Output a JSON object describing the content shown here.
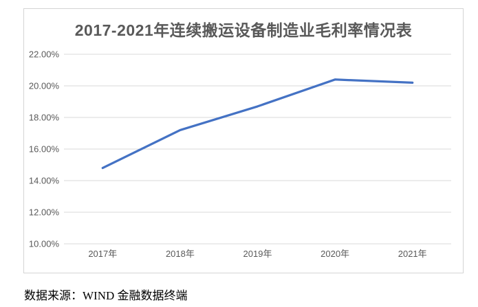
{
  "chart": {
    "title": "2017-2021年连续搬运设备制造业毛利率情况表",
    "title_color": "#595959",
    "border_color": "#d4d4d4",
    "line_color": "#4472C4",
    "gridline_color": "#d9d9d9",
    "tick_color": "#595959"
  },
  "chart_data": {
    "type": "line",
    "title": "2017-2021年连续搬运设备制造业毛利率情况表",
    "categories": [
      "2017年",
      "2018年",
      "2019年",
      "2020年",
      "2021年"
    ],
    "series": [
      {
        "name": "毛利率",
        "values": [
          14.8,
          17.2,
          18.7,
          20.4,
          20.2
        ]
      }
    ],
    "xlabel": "",
    "ylabel": "",
    "ylim": [
      10,
      22
    ],
    "ytick_step": 2,
    "ytick_labels": [
      "10.00%",
      "12.00%",
      "14.00%",
      "16.00%",
      "18.00%",
      "20.00%",
      "22.00%"
    ],
    "grid": true,
    "legend": "none"
  },
  "footer": {
    "source_text": "数据来源：WIND 金融数据终端"
  }
}
